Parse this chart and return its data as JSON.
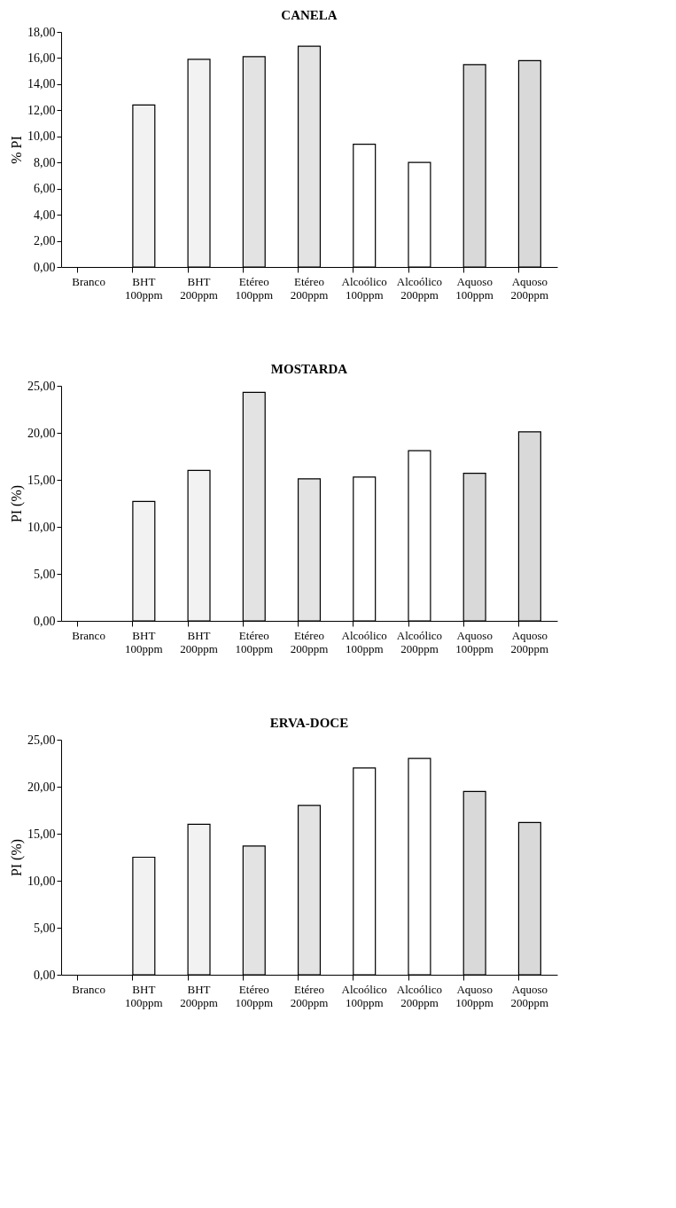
{
  "chart_data": [
    {
      "type": "bar",
      "title": "CANELA",
      "ylabel": "% PI",
      "categories": [
        "Branco",
        "BHT 100ppm",
        "BHT 200ppm",
        "Etéreo 100ppm",
        "Etéreo 200ppm",
        "Alcoólico 100ppm",
        "Alcoólico 200ppm",
        "Aquoso 100ppm",
        "Aquoso 200ppm"
      ],
      "values": [
        0,
        12.4,
        15.9,
        16.1,
        16.9,
        9.4,
        8.0,
        15.5,
        15.8
      ],
      "colors": [
        "#f2f2f2",
        "#f2f2f2",
        "#f2f2f2",
        "#e3e3e3",
        "#e3e3e3",
        "#ffffff",
        "#ffffff",
        "#d9d9d9",
        "#d9d9d9"
      ],
      "ylim": [
        0,
        18
      ],
      "yticks": [
        {
          "value": 0,
          "label": "0,00"
        },
        {
          "value": 2,
          "label": "2,00"
        },
        {
          "value": 4,
          "label": "4,00"
        },
        {
          "value": 6,
          "label": "6,00"
        },
        {
          "value": 8,
          "label": "8,00"
        },
        {
          "value": 10,
          "label": "10,00"
        },
        {
          "value": 12,
          "label": "12,00"
        },
        {
          "value": 14,
          "label": "14,00"
        },
        {
          "value": 16,
          "label": "16,00"
        },
        {
          "value": 18,
          "label": "18,00"
        }
      ],
      "grid": false
    },
    {
      "type": "bar",
      "title": "MOSTARDA",
      "ylabel": "PI (%)",
      "categories": [
        "Branco",
        "BHT 100ppm",
        "BHT 200ppm",
        "Etéreo 100ppm",
        "Etéreo 200ppm",
        "Alcoólico 100ppm",
        "Alcoólico 200ppm",
        "Aquoso 100ppm",
        "Aquoso 200ppm"
      ],
      "values": [
        0,
        12.7,
        16.0,
        24.3,
        15.1,
        15.3,
        18.1,
        15.7,
        20.1
      ],
      "colors": [
        "#f2f2f2",
        "#f2f2f2",
        "#f2f2f2",
        "#e3e3e3",
        "#e3e3e3",
        "#ffffff",
        "#ffffff",
        "#d9d9d9",
        "#d9d9d9"
      ],
      "ylim": [
        0,
        25
      ],
      "yticks": [
        {
          "value": 0,
          "label": "0,00"
        },
        {
          "value": 5,
          "label": "5,00"
        },
        {
          "value": 10,
          "label": "10,00"
        },
        {
          "value": 15,
          "label": "15,00"
        },
        {
          "value": 20,
          "label": "20,00"
        },
        {
          "value": 25,
          "label": "25,00"
        }
      ],
      "grid": false
    },
    {
      "type": "bar",
      "title": "ERVA-DOCE",
      "ylabel": "PI (%)",
      "categories": [
        "Branco",
        "BHT 100ppm",
        "BHT 200ppm",
        "Etéreo 100ppm",
        "Etéreo 200ppm",
        "Alcoólico 100ppm",
        "Alcoólico 200ppm",
        "Aquoso 100ppm",
        "Aquoso 200ppm"
      ],
      "values": [
        0,
        12.5,
        16.0,
        13.7,
        18.0,
        22.0,
        23.0,
        19.5,
        16.2
      ],
      "colors": [
        "#f2f2f2",
        "#f2f2f2",
        "#f2f2f2",
        "#e3e3e3",
        "#e3e3e3",
        "#ffffff",
        "#ffffff",
        "#d9d9d9",
        "#d9d9d9"
      ],
      "ylim": [
        0,
        25
      ],
      "yticks": [
        {
          "value": 0,
          "label": "0,00"
        },
        {
          "value": 5,
          "label": "5,00"
        },
        {
          "value": 10,
          "label": "10,00"
        },
        {
          "value": 15,
          "label": "15,00"
        },
        {
          "value": 20,
          "label": "20,00"
        },
        {
          "value": 25,
          "label": "25,00"
        }
      ],
      "grid": false
    }
  ]
}
